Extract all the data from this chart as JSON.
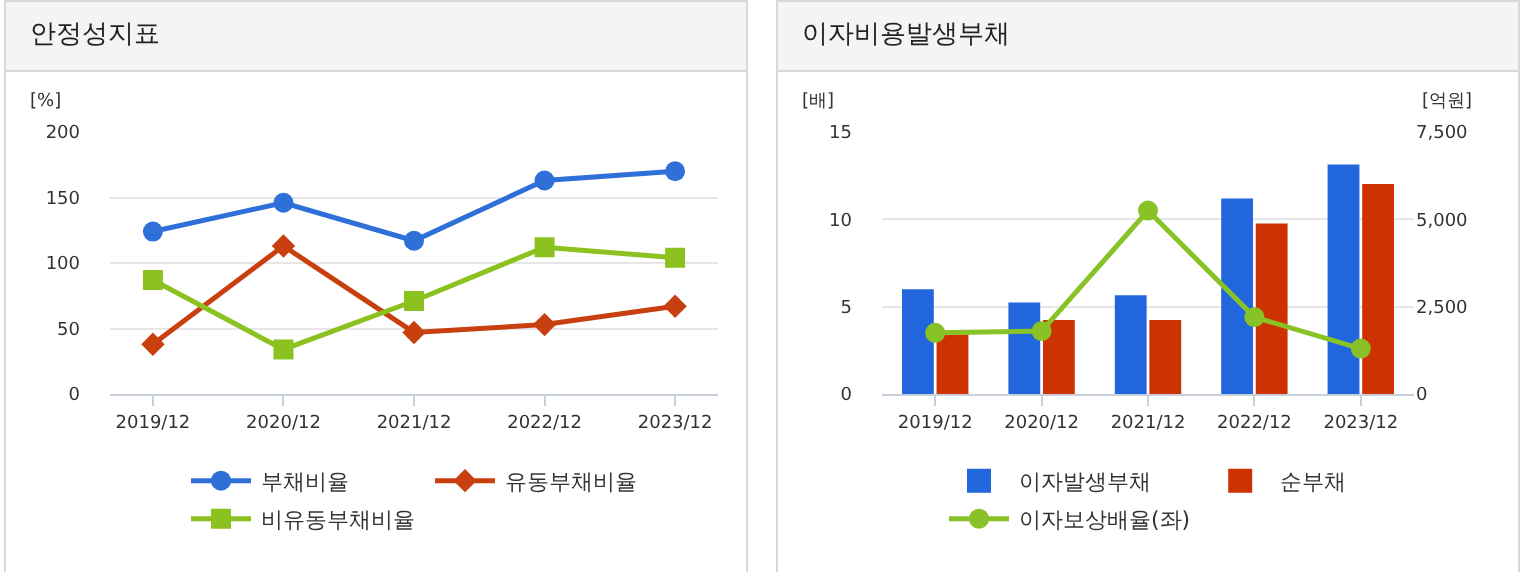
{
  "chart_data": [
    {
      "type": "line",
      "title": "안정성지표",
      "ylabel": "[%]",
      "categories": [
        "2019/12",
        "2020/12",
        "2021/12",
        "2022/12",
        "2023/12"
      ],
      "ylim": [
        0,
        200
      ],
      "yticks": [
        0,
        50,
        100,
        150,
        200
      ],
      "grid": "y",
      "legend": "bottom",
      "line_style": "solid",
      "series": [
        {
          "name": "부채비율",
          "color": "#2f6fd8",
          "marker": "circle",
          "values": [
            124,
            146,
            117,
            163,
            170
          ]
        },
        {
          "name": "유동부채비율",
          "color": "#c8400f",
          "marker": "diamond",
          "values": [
            38,
            113,
            47,
            53,
            67
          ]
        },
        {
          "name": "비유동부채비율",
          "color": "#8cc21f",
          "marker": "square",
          "values": [
            87,
            34,
            71,
            112,
            104
          ]
        }
      ]
    },
    {
      "type": "bar",
      "title": "이자비용발생부채",
      "ylabel": "[배]",
      "y2label": "[억원]",
      "categories": [
        "2019/12",
        "2020/12",
        "2021/12",
        "2022/12",
        "2023/12"
      ],
      "ylim": [
        0,
        15
      ],
      "yticks": [
        0,
        5,
        10,
        15
      ],
      "y2lim": [
        0,
        7500
      ],
      "y2ticks": [
        0,
        {
          "value": 2500,
          "label": "2,500"
        },
        {
          "value": 5000,
          "label": "5,000"
        },
        {
          "value": 7500,
          "label": "7,500"
        }
      ],
      "grid": "y",
      "legend": "bottom",
      "series": [
        {
          "name": "이자발생부채",
          "color": "#2266dd",
          "axis": "y2",
          "values": [
            3000,
            2620,
            2830,
            5600,
            6570
          ]
        },
        {
          "name": "순부채",
          "color": "#cc3300",
          "axis": "y2",
          "values": [
            1700,
            2120,
            2120,
            4880,
            6010
          ]
        },
        {
          "name": "이자보상배율(좌)",
          "type": "line",
          "color": "#88c226",
          "marker": "circle",
          "values": [
            3.5,
            3.6,
            10.5,
            4.4,
            2.6
          ]
        }
      ]
    }
  ]
}
